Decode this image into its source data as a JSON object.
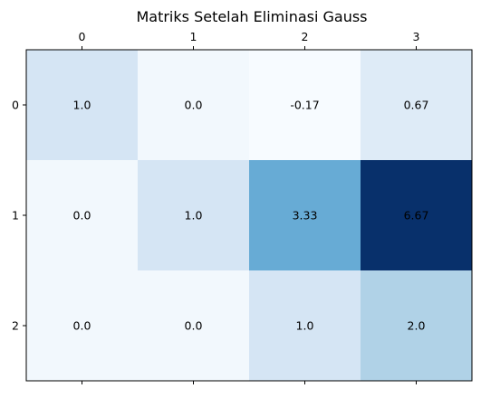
{
  "chart_data": {
    "type": "heatmap",
    "title": "Matriks Setelah Eliminasi Gauss",
    "colormap": "Blues",
    "x_tick_labels": [
      "0",
      "1",
      "2",
      "3"
    ],
    "y_tick_labels": [
      "0",
      "1",
      "2"
    ],
    "x_ticks_position": "top-and-bottom",
    "grid": false,
    "values": [
      [
        1.0,
        0.0,
        -0.17,
        0.67
      ],
      [
        0.0,
        1.0,
        3.33,
        6.67
      ],
      [
        0.0,
        0.0,
        1.0,
        2.0
      ]
    ],
    "cell_labels": [
      [
        "1.0",
        "0.0",
        "-0.17",
        "0.67"
      ],
      [
        "0.0",
        "1.0",
        "3.33",
        "6.67"
      ],
      [
        "0.0",
        "0.0",
        "1.0",
        "2.0"
      ]
    ],
    "value_range": [
      -0.17,
      6.67
    ]
  }
}
